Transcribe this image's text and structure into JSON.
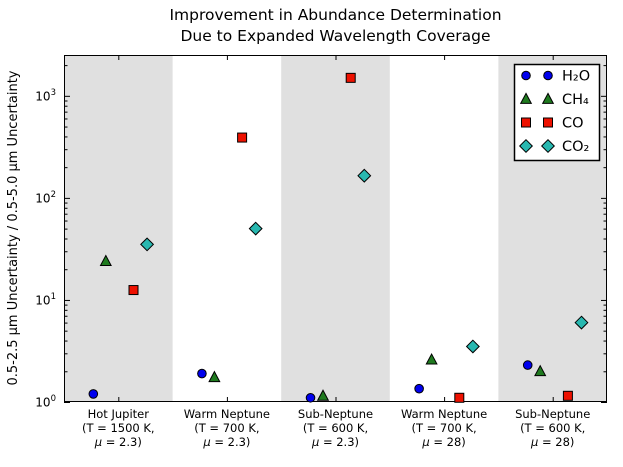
{
  "chart_data": {
    "type": "scatter",
    "title_lines": [
      "Improvement in Abundance Determination",
      "Due to Expanded Wavelength Coverage"
    ],
    "ylabel": "0.5-2.5 μm Uncertainty / 0.5-5.0 μm Uncertainty",
    "xlabel": "",
    "yscale": "log",
    "ylim": [
      1,
      2512
    ],
    "ytick_exponents": [
      0,
      1,
      2,
      3
    ],
    "grid": false,
    "legend_position": "upper right",
    "categories": [
      {
        "lines": [
          "Hot Jupiter",
          "(T = 1500 K,",
          "μ = 2.3)"
        ],
        "band": "gray"
      },
      {
        "lines": [
          "Warm Neptune",
          "(T = 700 K,",
          "μ = 2.3)"
        ],
        "band": "white"
      },
      {
        "lines": [
          "Sub-Neptune",
          "(T = 600 K,",
          "μ = 2.3)"
        ],
        "band": "gray"
      },
      {
        "lines": [
          "Warm Neptune",
          "(T = 700 K,",
          "μ = 28)"
        ],
        "band": "white"
      },
      {
        "lines": [
          "Sub-Neptune",
          "(T = 600 K,",
          "μ = 28)"
        ],
        "band": "gray"
      }
    ],
    "series": [
      {
        "name": "H₂O",
        "marker": "circle",
        "color": "#0000ee",
        "offset": -0.23,
        "values": [
          1.2,
          1.9,
          1.1,
          1.35,
          2.3
        ]
      },
      {
        "name": "CH₄",
        "marker": "triangle",
        "color": "#1f7a1f",
        "offset": -0.115,
        "values": [
          24,
          1.75,
          1.15,
          2.6,
          2.0
        ]
      },
      {
        "name": "CO",
        "marker": "square",
        "color": "#ee1100",
        "offset": 0.14,
        "values": [
          12.5,
          390,
          1500,
          1.1,
          1.15
        ]
      },
      {
        "name": "CO₂",
        "marker": "diamond",
        "color": "#28b8b0",
        "offset": 0.265,
        "values": [
          35,
          50,
          165,
          3.5,
          6.0
        ]
      }
    ],
    "colors": {
      "band_gray": "#e0e0e0",
      "plot_background": "#ffffff",
      "axis": "#000000",
      "text": "#000000",
      "legend_background": "#ffffff",
      "legend_border": "#000000"
    }
  }
}
